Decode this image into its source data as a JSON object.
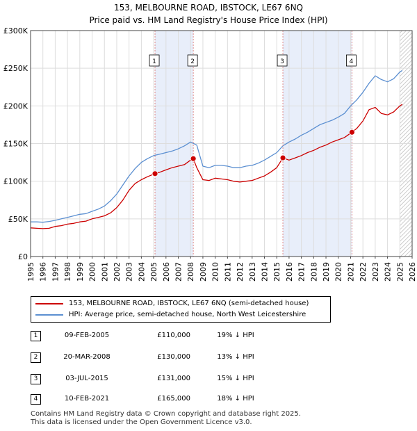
{
  "chart_data": {
    "type": "line",
    "title": "153, MELBOURNE ROAD, IBSTOCK, LE67 6NQ",
    "subtitle": "Price paid vs. HM Land Registry's House Price Index (HPI)",
    "xlabel": "",
    "ylabel": "",
    "xlim": [
      1995,
      2026
    ],
    "ylim": [
      0,
      300000
    ],
    "y_ticks": [
      {
        "value": 0,
        "label": "£0"
      },
      {
        "value": 50000,
        "label": "£50K"
      },
      {
        "value": 100000,
        "label": "£100K"
      },
      {
        "value": 150000,
        "label": "£150K"
      },
      {
        "value": 200000,
        "label": "£200K"
      },
      {
        "value": 250000,
        "label": "£250K"
      },
      {
        "value": 300000,
        "label": "£300K"
      }
    ],
    "x_ticks": [
      "1995",
      "1996",
      "1997",
      "1998",
      "1999",
      "2000",
      "2001",
      "2002",
      "2003",
      "2004",
      "2005",
      "2006",
      "2007",
      "2008",
      "2009",
      "2010",
      "2011",
      "2012",
      "2013",
      "2014",
      "2015",
      "2016",
      "2017",
      "2018",
      "2019",
      "2020",
      "2021",
      "2022",
      "2023",
      "2024",
      "2025",
      "2026"
    ],
    "grid": true,
    "colors": {
      "price": "#cc0000",
      "hpi": "#5b8fd1",
      "shade": "#e8eefa",
      "marker_line": "#dd8888"
    },
    "series": [
      {
        "name": "153, MELBOURNE ROAD, IBSTOCK, LE67 6NQ (semi-detached house)",
        "color": "#cc0000",
        "x": [
          1995.0,
          1995.5,
          1996.0,
          1996.5,
          1997.0,
          1997.5,
          1998.0,
          1998.5,
          1999.0,
          1999.5,
          2000.0,
          2000.5,
          2001.0,
          2001.5,
          2002.0,
          2002.5,
          2003.0,
          2003.5,
          2004.0,
          2004.5,
          2005.11,
          2005.5,
          2006.0,
          2006.5,
          2007.0,
          2007.5,
          2008.0,
          2008.22,
          2008.5,
          2009.0,
          2009.5,
          2010.0,
          2010.5,
          2011.0,
          2011.5,
          2012.0,
          2012.5,
          2013.0,
          2013.5,
          2014.0,
          2014.5,
          2015.0,
          2015.5,
          2016.0,
          2016.5,
          2017.0,
          2017.5,
          2018.0,
          2018.5,
          2019.0,
          2019.5,
          2020.0,
          2020.5,
          2021.11,
          2021.5,
          2022.0,
          2022.5,
          2023.0,
          2023.5,
          2024.0,
          2024.5,
          2025.0,
          2025.2
        ],
        "y": [
          38000,
          37500,
          37000,
          37500,
          40000,
          41000,
          43000,
          44000,
          46000,
          47000,
          50000,
          52000,
          54000,
          58000,
          65000,
          75000,
          88000,
          97000,
          102000,
          106000,
          110000,
          112000,
          115000,
          118000,
          120000,
          122000,
          128000,
          130000,
          118000,
          102000,
          101000,
          104000,
          103000,
          102000,
          100000,
          99000,
          100000,
          101000,
          104000,
          107000,
          112000,
          118000,
          131000,
          128000,
          131000,
          134000,
          138000,
          141000,
          145000,
          148000,
          152000,
          155000,
          158000,
          165000,
          170000,
          180000,
          195000,
          198000,
          190000,
          188000,
          192000,
          200000,
          202000
        ]
      },
      {
        "name": "HPI: Average price, semi-detached house, North West Leicestershire",
        "color": "#5b8fd1",
        "x": [
          1995.0,
          1995.5,
          1996.0,
          1996.5,
          1997.0,
          1997.5,
          1998.0,
          1998.5,
          1999.0,
          1999.5,
          2000.0,
          2000.5,
          2001.0,
          2001.5,
          2002.0,
          2002.5,
          2003.0,
          2003.5,
          2004.0,
          2004.5,
          2005.0,
          2005.5,
          2006.0,
          2006.5,
          2007.0,
          2007.5,
          2008.0,
          2008.5,
          2009.0,
          2009.5,
          2010.0,
          2010.5,
          2011.0,
          2011.5,
          2012.0,
          2012.5,
          2013.0,
          2013.5,
          2014.0,
          2014.5,
          2015.0,
          2015.5,
          2016.0,
          2016.5,
          2017.0,
          2017.5,
          2018.0,
          2018.5,
          2019.0,
          2019.5,
          2020.0,
          2020.5,
          2021.0,
          2021.5,
          2022.0,
          2022.5,
          2023.0,
          2023.5,
          2024.0,
          2024.5,
          2025.0,
          2025.2
        ],
        "y": [
          46000,
          46000,
          45500,
          46500,
          48000,
          50000,
          52000,
          54000,
          56000,
          57000,
          60000,
          63000,
          67000,
          74000,
          83000,
          95000,
          107000,
          117000,
          125000,
          130000,
          134000,
          136000,
          138000,
          140000,
          143000,
          147000,
          152000,
          148000,
          120000,
          118000,
          121000,
          121000,
          120000,
          118000,
          118000,
          120000,
          121000,
          124000,
          128000,
          133000,
          138000,
          147000,
          152000,
          156000,
          161000,
          165000,
          170000,
          175000,
          178000,
          181000,
          185000,
          190000,
          200000,
          208000,
          218000,
          230000,
          240000,
          235000,
          232000,
          236000,
          245000,
          247000
        ]
      }
    ],
    "sales": [
      {
        "n": "1",
        "x": 2005.11,
        "y": 110000,
        "date": "09-FEB-2005",
        "price": "£110,000",
        "hpi_delta": "19% ↓ HPI"
      },
      {
        "n": "2",
        "x": 2008.22,
        "y": 130000,
        "date": "20-MAR-2008",
        "price": "£130,000",
        "hpi_delta": "13% ↓ HPI"
      },
      {
        "n": "3",
        "x": 2015.5,
        "y": 131000,
        "date": "03-JUL-2015",
        "price": "£131,000",
        "hpi_delta": "15% ↓ HPI"
      },
      {
        "n": "4",
        "x": 2021.11,
        "y": 165000,
        "date": "10-FEB-2021",
        "price": "£165,000",
        "hpi_delta": "18% ↓ HPI"
      }
    ],
    "shaded_periods": [
      [
        2005.11,
        2008.22
      ],
      [
        2015.5,
        2021.11
      ]
    ],
    "hatched_from": 2025.0,
    "legend_placement": "bottom"
  },
  "footer": {
    "line1": "Contains HM Land Registry data © Crown copyright and database right 2025.",
    "line2": "This data is licensed under the Open Government Licence v3.0."
  }
}
